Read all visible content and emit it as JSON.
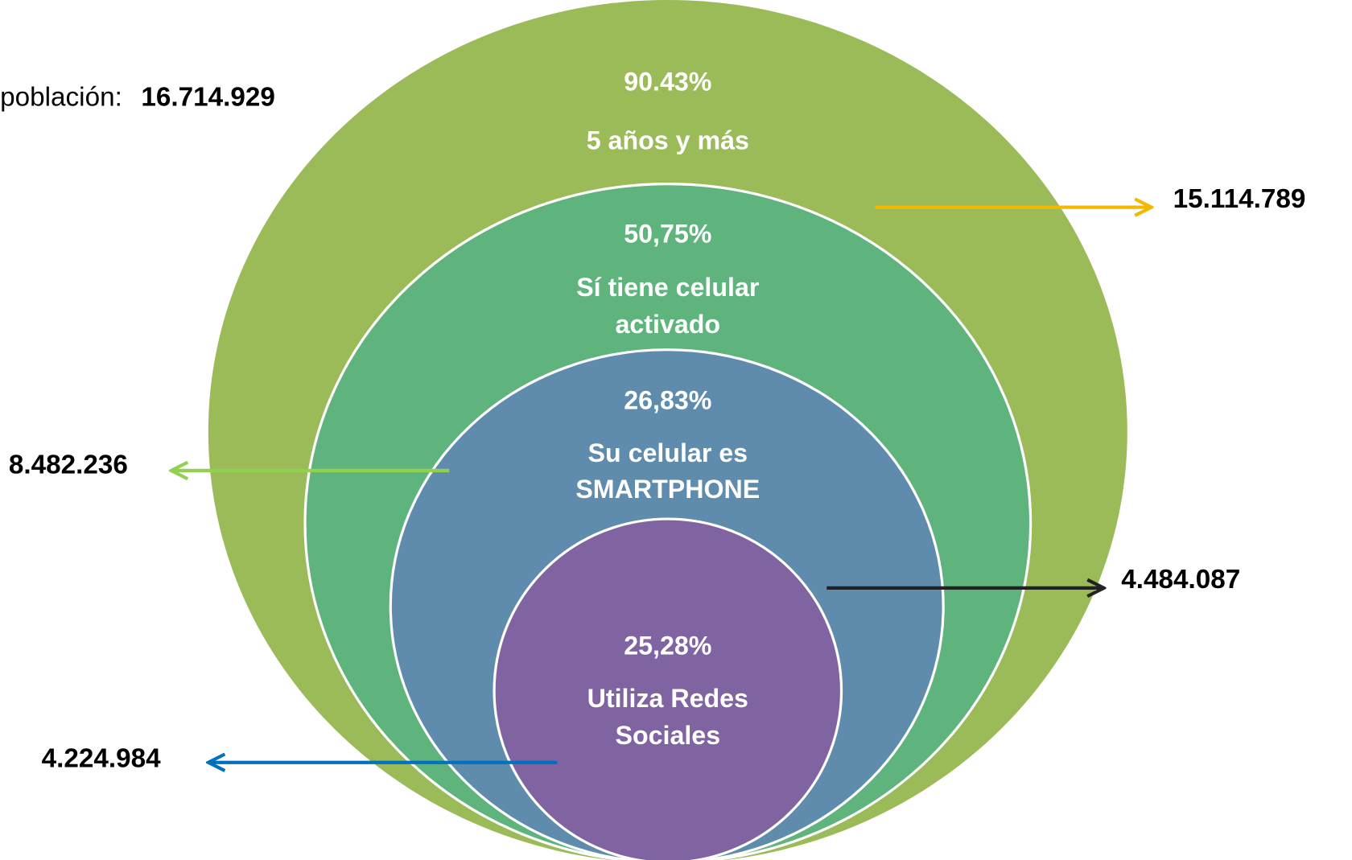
{
  "population": {
    "label": "población:",
    "value": "16.714.929"
  },
  "rings": [
    {
      "percent": "90.43%",
      "label_lines": [
        "5 años y más"
      ],
      "total": "15.114.789"
    },
    {
      "percent": "50,75%",
      "label_lines": [
        "Sí tiene celular",
        "activado"
      ],
      "total": "8.482.236"
    },
    {
      "percent": "26,83%",
      "label_lines": [
        "Su celular es",
        "SMARTPHONE"
      ],
      "total": "4.484.087"
    },
    {
      "percent": "25,28%",
      "label_lines": [
        "Utiliza Redes",
        "Sociales"
      ],
      "total": "4.224.984"
    }
  ]
}
